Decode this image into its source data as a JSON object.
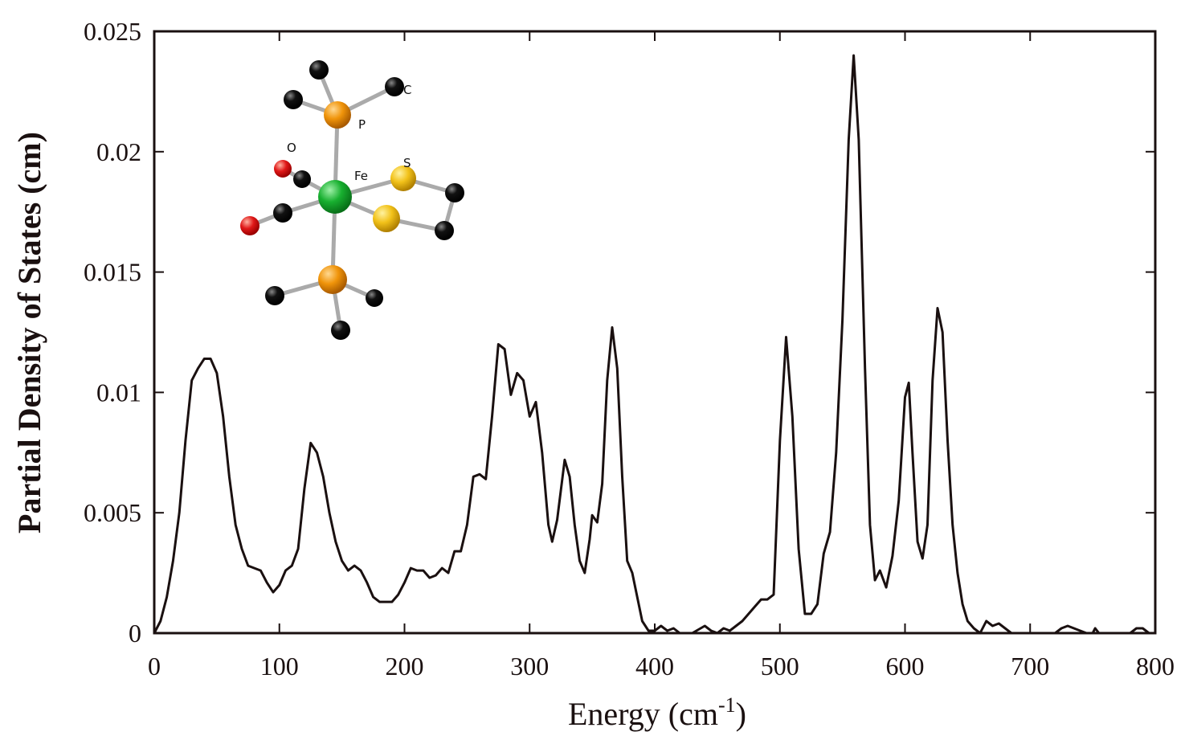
{
  "chart_data": {
    "type": "line",
    "x_label": [
      "Energy (cm",
      "-1",
      ")"
    ],
    "y_label": "Partial Density of States (cm)",
    "inset_labels": [
      "P",
      "C",
      "O",
      "Fe",
      "S"
    ],
    "xlim": [
      0,
      800
    ],
    "xticks": [
      0,
      100,
      200,
      300,
      400,
      500,
      600,
      700,
      800
    ],
    "ylim": [
      0,
      0.025
    ],
    "yticks": [
      0,
      0.005,
      0.01,
      0.015,
      0.02,
      0.025
    ],
    "series": [
      {
        "color": "#1a1010",
        "x": [
          0,
          5,
          10,
          15,
          20,
          25,
          30,
          35,
          40,
          45,
          50,
          55,
          60,
          65,
          70,
          75,
          80,
          85,
          90,
          95,
          100,
          105,
          110,
          115,
          120,
          125,
          130,
          135,
          140,
          145,
          150,
          155,
          160,
          165,
          170,
          175,
          180,
          185,
          190,
          195,
          200,
          205,
          210,
          215,
          220,
          225,
          230,
          235,
          240,
          245,
          250,
          255,
          260,
          265,
          270,
          275,
          280,
          285,
          290,
          295,
          300,
          305,
          310,
          315,
          318,
          322,
          328,
          332,
          336,
          340,
          344,
          348,
          350,
          354,
          358,
          362,
          366,
          370,
          374,
          378,
          382,
          386,
          390,
          395,
          400,
          405,
          410,
          415,
          420,
          430,
          440,
          445,
          450,
          455,
          460,
          465,
          470,
          475,
          480,
          485,
          490,
          495,
          500,
          505,
          510,
          515,
          520,
          525,
          530,
          535,
          540,
          545,
          550,
          555,
          559,
          563,
          568,
          572,
          576,
          580,
          585,
          590,
          595,
          600,
          603,
          606,
          610,
          614,
          618,
          622,
          626,
          630,
          634,
          638,
          642,
          646,
          650,
          655,
          660,
          665,
          670,
          675,
          680,
          685,
          700,
          720,
          725,
          730,
          740,
          745,
          750,
          752,
          755,
          780,
          785,
          790,
          795
        ],
        "values": [
          0,
          0.0005,
          0.0015,
          0.003,
          0.005,
          0.008,
          0.0105,
          0.011,
          0.0114,
          0.0114,
          0.0108,
          0.009,
          0.0065,
          0.0045,
          0.0035,
          0.0028,
          0.0027,
          0.0026,
          0.0021,
          0.0017,
          0.002,
          0.0026,
          0.0028,
          0.0035,
          0.006,
          0.0079,
          0.0075,
          0.0065,
          0.005,
          0.0038,
          0.003,
          0.0026,
          0.0028,
          0.0026,
          0.0021,
          0.0015,
          0.0013,
          0.0013,
          0.0013,
          0.0016,
          0.0021,
          0.0027,
          0.0026,
          0.0026,
          0.0023,
          0.0024,
          0.0027,
          0.0025,
          0.0034,
          0.0034,
          0.0045,
          0.0065,
          0.0066,
          0.0064,
          0.009,
          0.012,
          0.0118,
          0.0099,
          0.0108,
          0.0105,
          0.009,
          0.0096,
          0.0075,
          0.0045,
          0.0038,
          0.0047,
          0.0072,
          0.0065,
          0.0045,
          0.003,
          0.0025,
          0.0039,
          0.0049,
          0.0046,
          0.0062,
          0.0105,
          0.0127,
          0.011,
          0.0065,
          0.003,
          0.0025,
          0.0015,
          0.0005,
          0.0001,
          0.0001,
          0.0003,
          0.0001,
          0.0002,
          0,
          0,
          0.0003,
          0.0001,
          0,
          0.0002,
          0.0001,
          0.0003,
          0.0005,
          0.0008,
          0.0011,
          0.0014,
          0.0014,
          0.0016,
          0.008,
          0.0123,
          0.009,
          0.0035,
          0.0008,
          0.0008,
          0.0012,
          0.0033,
          0.0042,
          0.0075,
          0.013,
          0.0205,
          0.024,
          0.0205,
          0.011,
          0.0045,
          0.0022,
          0.0026,
          0.0019,
          0.0032,
          0.0055,
          0.0098,
          0.0104,
          0.0075,
          0.0038,
          0.0031,
          0.0045,
          0.0105,
          0.0135,
          0.0125,
          0.008,
          0.0045,
          0.0025,
          0.0012,
          0.0005,
          0.0002,
          0,
          0.0005,
          0.0003,
          0.0004,
          0.0002,
          0,
          0,
          0,
          0.0002,
          0.0003,
          0.0001,
          0,
          0,
          0.0002,
          0,
          0,
          0.0002,
          0.0002,
          0
        ]
      }
    ]
  }
}
